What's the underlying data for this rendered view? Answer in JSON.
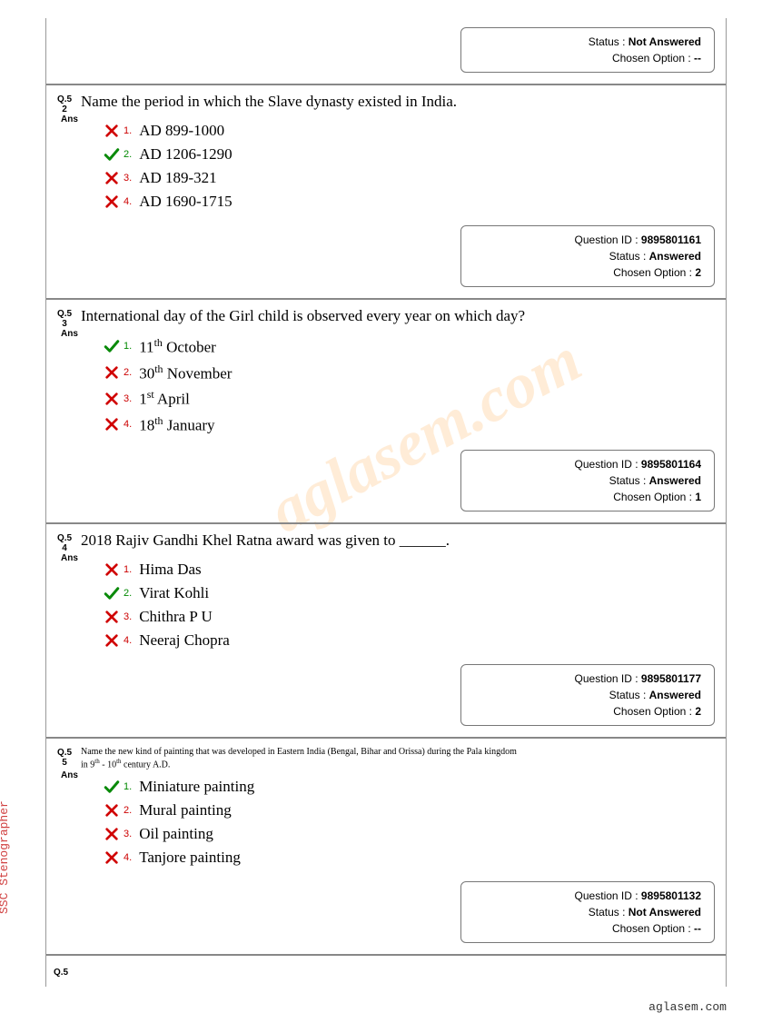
{
  "sideText": "SSC Stenographer",
  "footerText": "aglasem.com",
  "watermark": "aglasem.com",
  "labels": {
    "ans": "Ans",
    "questionId": "Question ID :",
    "status": "Status :",
    "chosen": "Chosen Option :"
  },
  "partialTop": {
    "status": "Not Answered",
    "chosen": "--"
  },
  "questions": [
    {
      "num": "Q.5\n2",
      "text": "Name the period in which the Slave dynasty existed in India.",
      "smallText": false,
      "options": [
        {
          "n": "1.",
          "text": "AD 899-1000",
          "correct": false
        },
        {
          "n": "2.",
          "text": "AD 1206-1290",
          "correct": true
        },
        {
          "n": "3.",
          "text": "AD 189-321",
          "correct": false
        },
        {
          "n": "4.",
          "text": "AD 1690-1715",
          "correct": false
        }
      ],
      "qid": "9895801161",
      "status": "Answered",
      "chosen": "2"
    },
    {
      "num": "Q.5\n3",
      "text": "International day of the Girl child is observed every year on which day?",
      "smallText": false,
      "options": [
        {
          "n": "1.",
          "html": "11<sup>th</sup> October",
          "correct": true
        },
        {
          "n": "2.",
          "html": "30<sup>th</sup> November",
          "correct": false
        },
        {
          "n": "3.",
          "html": "1<sup>st</sup> April",
          "correct": false
        },
        {
          "n": "4.",
          "html": "18<sup>th</sup> January",
          "correct": false
        }
      ],
      "qid": "9895801164",
      "status": "Answered",
      "chosen": "1"
    },
    {
      "num": "Q.5\n4",
      "text": "2018 Rajiv Gandhi Khel Ratna award was given to ______.",
      "smallText": false,
      "options": [
        {
          "n": "1.",
          "text": "Hima Das",
          "correct": false
        },
        {
          "n": "2.",
          "text": "Virat Kohli",
          "correct": true
        },
        {
          "n": "3.",
          "text": "Chithra P U",
          "correct": false
        },
        {
          "n": "4.",
          "text": "Neeraj Chopra",
          "correct": false
        }
      ],
      "qid": "9895801177",
      "status": "Answered",
      "chosen": "2"
    },
    {
      "num": "Q.5\n5",
      "text": "Name the new kind of painting that was developed in Eastern India (Bengal, Bihar and Orissa) during the Pala kingdom in 9th - 10th century A.D.",
      "smallText": true,
      "options": [
        {
          "n": "1.",
          "text": "Miniature painting",
          "correct": true
        },
        {
          "n": "2.",
          "text": "Mural painting",
          "correct": false
        },
        {
          "n": "3.",
          "text": "Oil painting",
          "correct": false
        },
        {
          "n": "4.",
          "text": "Tanjore painting",
          "correct": false
        }
      ],
      "qid": "9895801132",
      "status": "Not Answered",
      "chosen": "--"
    }
  ],
  "lastQNum": "Q.5"
}
